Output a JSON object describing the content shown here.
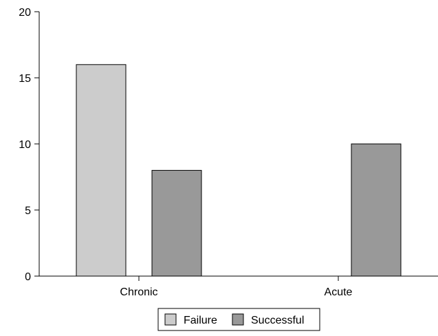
{
  "chart_data": {
    "type": "bar",
    "categories": [
      "Chronic",
      "Acute"
    ],
    "series": [
      {
        "name": "Failure",
        "values": [
          16,
          0
        ],
        "color": "#cccccc"
      },
      {
        "name": "Successful",
        "values": [
          8,
          10
        ],
        "color": "#999999"
      }
    ],
    "ylim": [
      0,
      20
    ],
    "yticks": [
      0,
      5,
      10,
      15,
      20
    ],
    "grid": false,
    "legend_position": "bottom-center"
  }
}
